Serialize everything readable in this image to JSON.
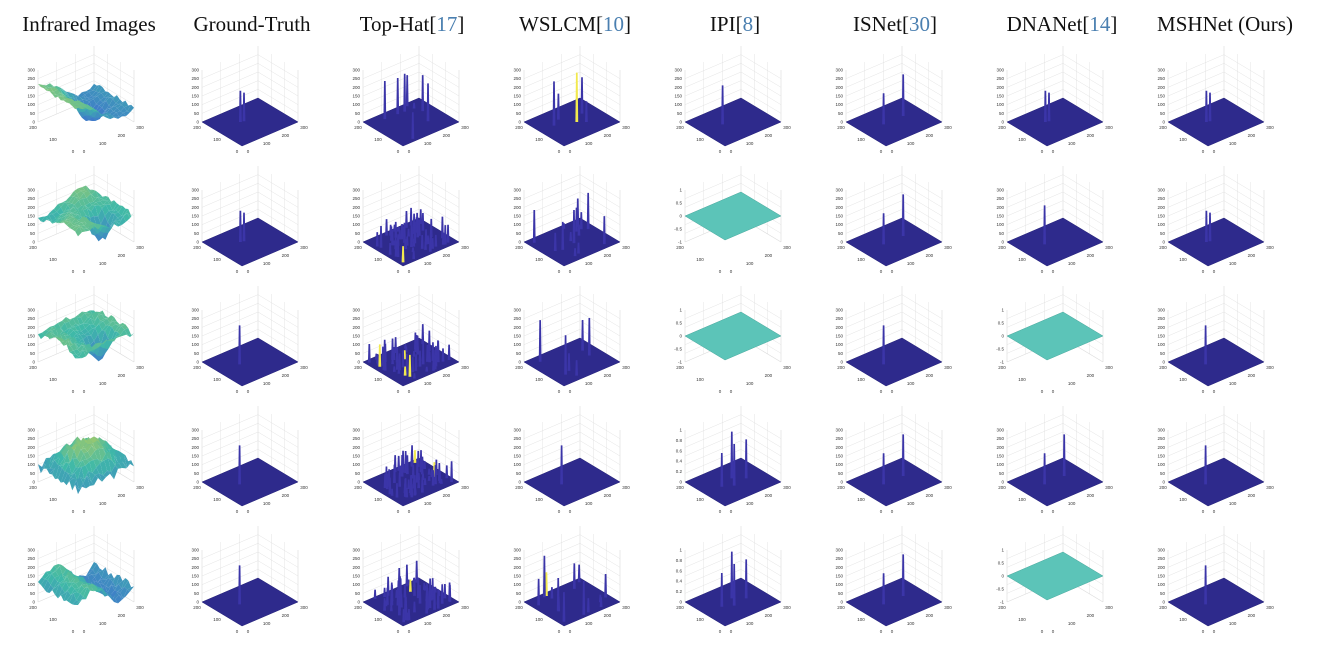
{
  "columns": [
    {
      "label": "Infrared Images",
      "ref": ""
    },
    {
      "label": "Ground-Truth",
      "ref": ""
    },
    {
      "label": "Top-Hat",
      "ref": "17"
    },
    {
      "label": "WSLCM",
      "ref": "10"
    },
    {
      "label": "IPI",
      "ref": "8"
    },
    {
      "label": "ISNet",
      "ref": "30"
    },
    {
      "label": "DNANet",
      "ref": "14"
    },
    {
      "label": "MSHNet (Ours)",
      "ref": ""
    }
  ],
  "axis": {
    "z_ticks_255": [
      "300",
      "250",
      "200",
      "150",
      "100",
      "50",
      "0"
    ],
    "z_ticks_unit": [
      "1",
      "0.5",
      "0",
      "-0.5",
      "-1"
    ],
    "z_ticks_ipi": [
      "1",
      "0.8",
      "0.6",
      "0.4",
      "0.2",
      "0"
    ],
    "x_ticks": [
      "0",
      "100",
      "200",
      "300"
    ],
    "y_ticks": [
      "0",
      "100",
      "200"
    ]
  },
  "colors": {
    "floor": "#2e2a8c",
    "floor_edge": "#23207a",
    "spike": "#3b35a8",
    "spike_hi": "#f2e94e",
    "flat": "#5cc4b8",
    "surface_low": "#3f6fd0",
    "surface_mid": "#3fb9a8",
    "surface_high": "#d6d24a",
    "grid": "#dcdcdc",
    "ref_link": "#4a7fb0"
  },
  "panels": [
    [
      "surface",
      "spikes-few",
      "spikes-noisy",
      "spikes-tall",
      "spikes-one",
      "spikes-two",
      "spikes-few",
      "spikes-few"
    ],
    [
      "surface",
      "spikes-few",
      "spikes-dense",
      "spikes-many",
      "flat",
      "spikes-two",
      "spikes-one",
      "spikes-few"
    ],
    [
      "surface",
      "spikes-one",
      "spikes-dense",
      "spikes-some",
      "flat",
      "spikes-one",
      "flat",
      "spikes-one"
    ],
    [
      "surface",
      "spikes-one",
      "spikes-dense",
      "spikes-one",
      "spikes-ipi",
      "spikes-two",
      "spikes-two",
      "spikes-one"
    ],
    [
      "surface",
      "spikes-one",
      "spikes-dense",
      "spikes-many",
      "spikes-ipi",
      "spikes-two",
      "flat",
      "spikes-one"
    ]
  ]
}
